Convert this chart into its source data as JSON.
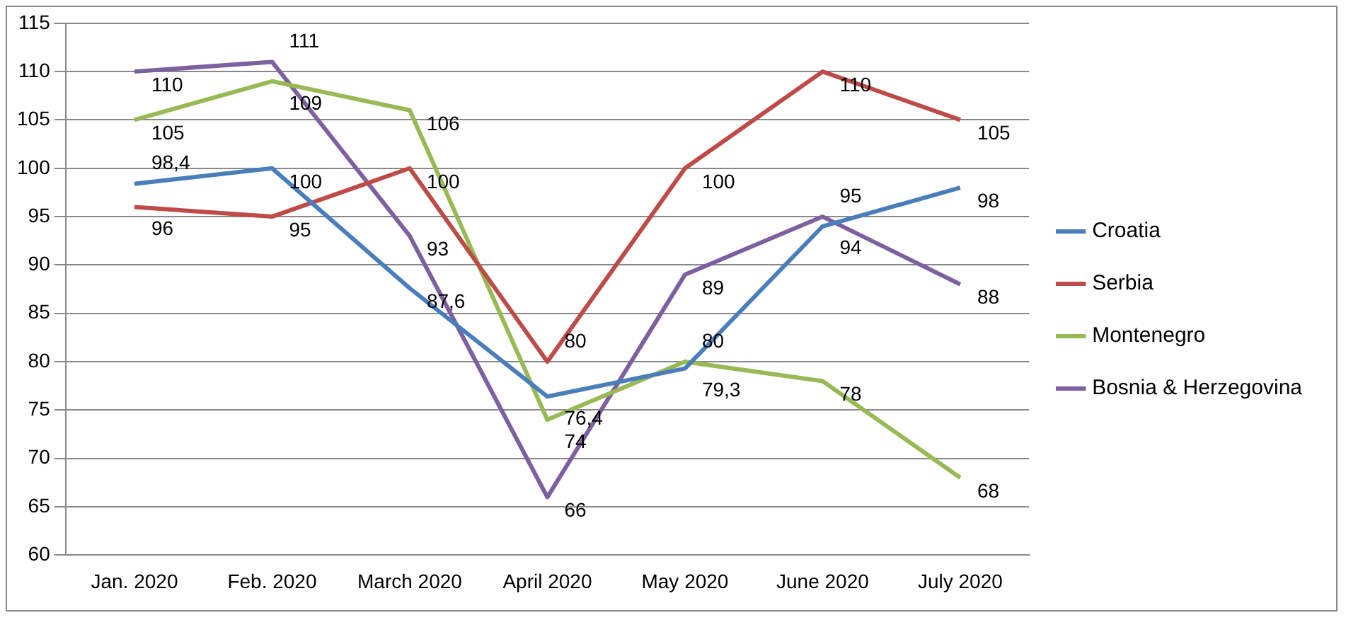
{
  "chart_data": {
    "type": "line",
    "categories": [
      "Jan. 2020",
      "Feb. 2020",
      "March 2020",
      "April 2020",
      "May 2020",
      "June 2020",
      "July 2020"
    ],
    "series": [
      {
        "name": "Croatia",
        "color": "#4a7ebb",
        "values": [
          98.4,
          100,
          87.6,
          76.4,
          79.3,
          94,
          98
        ],
        "value_labels": [
          "98,4",
          "100",
          "87,6",
          "76,4",
          "79,3",
          "94",
          "98"
        ]
      },
      {
        "name": "Serbia",
        "color": "#be4b48",
        "values": [
          96,
          95,
          100,
          80,
          100,
          110,
          105
        ],
        "value_labels": [
          "96",
          "95",
          "100",
          "80",
          "100",
          "110",
          "105"
        ]
      },
      {
        "name": "Montenegro",
        "color": "#98b954",
        "values": [
          105,
          109,
          106,
          74,
          80,
          78,
          68
        ],
        "value_labels": [
          "105",
          "109",
          "106",
          "74",
          "80",
          "78",
          "68"
        ]
      },
      {
        "name": "Bosnia & Herzegovina",
        "color": "#7d60a0",
        "values": [
          110,
          111,
          93,
          66,
          89,
          95,
          88
        ],
        "value_labels": [
          "110",
          "111",
          "93",
          "66",
          "89",
          "95",
          "88"
        ]
      }
    ],
    "ylim": [
      60,
      115
    ],
    "yticks": [
      60,
      65,
      70,
      75,
      80,
      85,
      90,
      95,
      100,
      105,
      110,
      115
    ],
    "grid": "y",
    "legend": "right",
    "marker": "none",
    "line_style": "solid"
  }
}
